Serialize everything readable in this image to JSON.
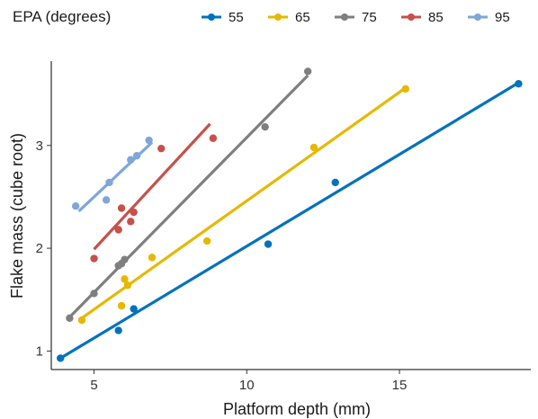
{
  "chart_data": {
    "type": "scatter",
    "title": "",
    "xlabel": "Platform depth (mm)",
    "ylabel": "Flake mass (cube root)",
    "xlim": [
      3.6,
      19.3
    ],
    "ylim": [
      0.82,
      3.82
    ],
    "x_ticks": [
      5,
      10,
      15
    ],
    "y_ticks": [
      1,
      2,
      3
    ],
    "grid": false,
    "legend": {
      "title": "EPA (degrees)",
      "position": "top"
    },
    "series": [
      {
        "name": "55",
        "color": "#0072BD",
        "points": [
          [
            3.9,
            0.93
          ],
          [
            5.8,
            1.2
          ],
          [
            6.3,
            1.41
          ],
          [
            10.7,
            2.04
          ],
          [
            12.9,
            2.64
          ],
          [
            18.9,
            3.6
          ]
        ],
        "fit": [
          [
            3.9,
            0.93
          ],
          [
            18.9,
            3.61
          ]
        ]
      },
      {
        "name": "65",
        "color": "#E6B800",
        "points": [
          [
            4.6,
            1.3
          ],
          [
            5.9,
            1.44
          ],
          [
            6.0,
            1.7
          ],
          [
            6.1,
            1.64
          ],
          [
            6.9,
            1.91
          ],
          [
            8.7,
            2.07
          ],
          [
            12.2,
            2.98
          ],
          [
            15.2,
            3.55
          ]
        ],
        "fit": [
          [
            4.6,
            1.32
          ],
          [
            15.2,
            3.56
          ]
        ]
      },
      {
        "name": "75",
        "color": "#7F7F7F",
        "points": [
          [
            4.2,
            1.32
          ],
          [
            5.0,
            1.56
          ],
          [
            5.8,
            1.83
          ],
          [
            5.9,
            1.85
          ],
          [
            6.0,
            1.89
          ],
          [
            10.6,
            3.18
          ],
          [
            12.0,
            3.72
          ]
        ],
        "fit": [
          [
            4.2,
            1.33
          ],
          [
            12.0,
            3.68
          ]
        ]
      },
      {
        "name": "85",
        "color": "#C8504A",
        "points": [
          [
            5.0,
            1.9
          ],
          [
            5.8,
            2.18
          ],
          [
            5.9,
            2.39
          ],
          [
            6.2,
            2.26
          ],
          [
            6.3,
            2.35
          ],
          [
            7.2,
            2.97
          ],
          [
            8.9,
            3.07
          ]
        ],
        "fit": [
          [
            5.0,
            1.99
          ],
          [
            8.8,
            3.21
          ]
        ]
      },
      {
        "name": "95",
        "color": "#7EA6DA",
        "points": [
          [
            4.4,
            2.41
          ],
          [
            5.4,
            2.47
          ],
          [
            5.5,
            2.64
          ],
          [
            6.2,
            2.86
          ],
          [
            6.4,
            2.9
          ],
          [
            6.8,
            3.05
          ]
        ],
        "fit": [
          [
            4.5,
            2.36
          ],
          [
            6.9,
            3.03
          ]
        ]
      }
    ]
  }
}
